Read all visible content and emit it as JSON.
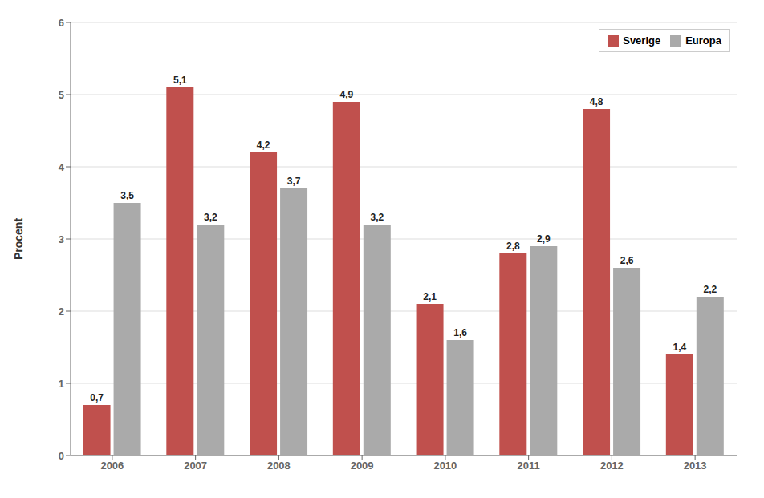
{
  "chart_data": {
    "type": "bar",
    "categories": [
      "2006",
      "2007",
      "2008",
      "2009",
      "2010",
      "2011",
      "2012",
      "2013"
    ],
    "series": [
      {
        "name": "Sverige",
        "color": "#c0504d",
        "values": [
          0.7,
          5.1,
          4.2,
          4.9,
          2.1,
          2.8,
          4.8,
          1.4
        ],
        "value_labels": [
          "0,7",
          "5,1",
          "4,2",
          "4,9",
          "2,1",
          "2,8",
          "4,8",
          "1,4"
        ]
      },
      {
        "name": "Europa",
        "color": "#aaaaaa",
        "values": [
          3.5,
          3.2,
          3.7,
          3.2,
          1.6,
          2.9,
          2.6,
          2.2
        ],
        "value_labels": [
          "3,5",
          "3,2",
          "3,7",
          "3,2",
          "1,6",
          "2,9",
          "2,6",
          "2,2"
        ]
      }
    ],
    "ylabel": "Procent",
    "ylim": [
      0,
      6
    ],
    "yticks": [
      0,
      1,
      2,
      3,
      4,
      5,
      6
    ],
    "grid": true,
    "legend": "upper right",
    "data_labels": true
  }
}
